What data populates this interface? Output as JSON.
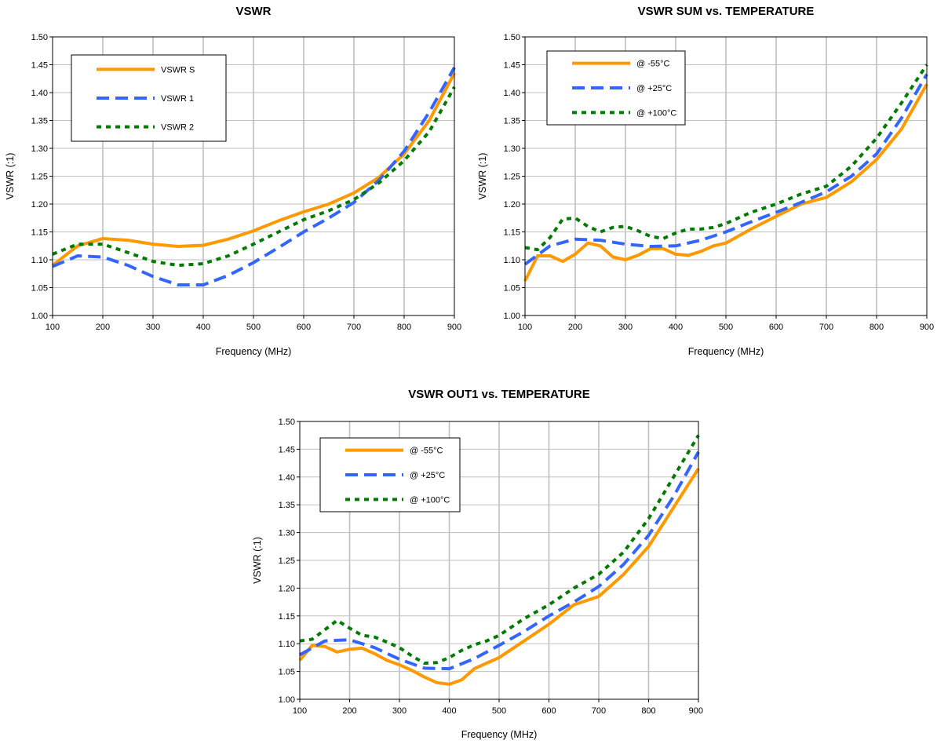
{
  "colors": {
    "orange": "#FF9900",
    "blue": "#3366FF",
    "green": "#007A00",
    "grid": "#BFBFBF"
  },
  "chart_data": [
    {
      "type": "line",
      "title": "VSWR",
      "xlabel": "Frequency (MHz)",
      "ylabel": "VSWR (:1)",
      "xlim": [
        100,
        900
      ],
      "ylim": [
        1.0,
        1.5
      ],
      "xticks": [
        "100",
        "200",
        "300",
        "400",
        "500",
        "600",
        "700",
        "800",
        "900"
      ],
      "yticks": [
        "1.00",
        "1.05",
        "1.10",
        "1.15",
        "1.20",
        "1.25",
        "1.30",
        "1.35",
        "1.40",
        "1.45",
        "1.50"
      ],
      "grid": "vertical",
      "legend_position": "top-left",
      "series": [
        {
          "name": "VSWR S",
          "color": "#FF9900",
          "style": "solid",
          "x": [
            100,
            150,
            200,
            250,
            300,
            350,
            400,
            450,
            500,
            550,
            600,
            650,
            700,
            750,
            800,
            850,
            900
          ],
          "y": [
            1.09,
            1.125,
            1.138,
            1.135,
            1.128,
            1.124,
            1.126,
            1.137,
            1.152,
            1.17,
            1.186,
            1.2,
            1.22,
            1.248,
            1.29,
            1.35,
            1.435
          ]
        },
        {
          "name": "VSWR 1",
          "color": "#3366FF",
          "style": "dashed",
          "x": [
            100,
            150,
            200,
            250,
            300,
            350,
            400,
            450,
            500,
            550,
            600,
            650,
            700,
            750,
            800,
            850,
            900
          ],
          "y": [
            1.088,
            1.107,
            1.105,
            1.09,
            1.07,
            1.055,
            1.055,
            1.072,
            1.095,
            1.122,
            1.15,
            1.175,
            1.203,
            1.243,
            1.295,
            1.365,
            1.445
          ]
        },
        {
          "name": "VSWR 2",
          "color": "#007A00",
          "style": "dotted",
          "x": [
            100,
            150,
            200,
            250,
            300,
            350,
            400,
            450,
            500,
            550,
            600,
            650,
            700,
            750,
            800,
            850,
            900
          ],
          "y": [
            1.11,
            1.128,
            1.128,
            1.113,
            1.097,
            1.09,
            1.093,
            1.107,
            1.128,
            1.15,
            1.172,
            1.188,
            1.208,
            1.238,
            1.278,
            1.33,
            1.41
          ]
        }
      ]
    },
    {
      "type": "line",
      "title": "VSWR SUM vs. TEMPERATURE",
      "xlabel": "Frequency (MHz)",
      "ylabel": "VSWR (:1)",
      "xlim": [
        100,
        900
      ],
      "ylim": [
        1.0,
        1.5
      ],
      "xticks": [
        "100",
        "200",
        "300",
        "400",
        "500",
        "600",
        "700",
        "800",
        "900"
      ],
      "yticks": [
        "1.00",
        "1.05",
        "1.10",
        "1.15",
        "1.20",
        "1.25",
        "1.30",
        "1.35",
        "1.40",
        "1.45",
        "1.50"
      ],
      "grid": "vertical",
      "legend_position": "top-left",
      "series": [
        {
          "name": "@ -55°C",
          "color": "#FF9900",
          "style": "solid",
          "x": [
            100,
            125,
            150,
            175,
            200,
            225,
            250,
            275,
            300,
            325,
            350,
            375,
            400,
            425,
            450,
            475,
            500,
            550,
            600,
            650,
            700,
            750,
            800,
            850,
            900
          ],
          "y": [
            1.062,
            1.107,
            1.107,
            1.097,
            1.11,
            1.13,
            1.125,
            1.105,
            1.1,
            1.108,
            1.12,
            1.12,
            1.11,
            1.108,
            1.115,
            1.125,
            1.13,
            1.155,
            1.178,
            1.2,
            1.212,
            1.24,
            1.28,
            1.335,
            1.415
          ]
        },
        {
          "name": "@ +25°C",
          "color": "#3366FF",
          "style": "dashed",
          "x": [
            100,
            150,
            200,
            250,
            300,
            350,
            400,
            450,
            500,
            550,
            600,
            650,
            700,
            750,
            800,
            850,
            900
          ],
          "y": [
            1.092,
            1.125,
            1.137,
            1.135,
            1.128,
            1.124,
            1.125,
            1.135,
            1.15,
            1.168,
            1.185,
            1.203,
            1.222,
            1.25,
            1.29,
            1.355,
            1.433
          ]
        },
        {
          "name": "@ +100°C",
          "color": "#007A00",
          "style": "dotted",
          "x": [
            100,
            125,
            150,
            175,
            200,
            225,
            250,
            275,
            300,
            325,
            350,
            375,
            400,
            425,
            450,
            475,
            500,
            550,
            600,
            650,
            700,
            750,
            800,
            850,
            900
          ],
          "y": [
            1.122,
            1.118,
            1.14,
            1.173,
            1.175,
            1.16,
            1.15,
            1.158,
            1.16,
            1.152,
            1.142,
            1.138,
            1.148,
            1.155,
            1.155,
            1.158,
            1.165,
            1.185,
            1.2,
            1.218,
            1.232,
            1.268,
            1.318,
            1.382,
            1.45
          ]
        }
      ]
    },
    {
      "type": "line",
      "title": "VSWR OUT1 vs. TEMPERATURE",
      "xlabel": "Frequency (MHz)",
      "ylabel": "VSWR (:1)",
      "xlim": [
        100,
        900
      ],
      "ylim": [
        1.0,
        1.5
      ],
      "xticks": [
        "100",
        "200",
        "300",
        "400",
        "500",
        "600",
        "700",
        "800",
        "900"
      ],
      "yticks": [
        "1.00",
        "1.05",
        "1.10",
        "1.15",
        "1.20",
        "1.25",
        "1.30",
        "1.35",
        "1.40",
        "1.45",
        "1.50"
      ],
      "grid": "vertical",
      "legend_position": "top-left",
      "series": [
        {
          "name": "@ -55°C",
          "color": "#FF9900",
          "style": "solid",
          "x": [
            100,
            125,
            150,
            175,
            200,
            225,
            250,
            275,
            300,
            325,
            350,
            375,
            400,
            425,
            450,
            475,
            500,
            550,
            600,
            650,
            700,
            750,
            800,
            850,
            900
          ],
          "y": [
            1.07,
            1.097,
            1.095,
            1.085,
            1.09,
            1.092,
            1.082,
            1.07,
            1.062,
            1.052,
            1.04,
            1.03,
            1.027,
            1.035,
            1.055,
            1.065,
            1.075,
            1.105,
            1.135,
            1.17,
            1.185,
            1.225,
            1.275,
            1.345,
            1.415
          ]
        },
        {
          "name": "@ +25°C",
          "color": "#3366FF",
          "style": "dashed",
          "x": [
            100,
            150,
            200,
            250,
            300,
            350,
            400,
            450,
            500,
            550,
            600,
            650,
            700,
            750,
            800,
            850,
            900
          ],
          "y": [
            1.08,
            1.105,
            1.107,
            1.093,
            1.072,
            1.056,
            1.055,
            1.073,
            1.097,
            1.122,
            1.15,
            1.175,
            1.203,
            1.243,
            1.295,
            1.365,
            1.445
          ]
        },
        {
          "name": "@ +100°C",
          "color": "#007A00",
          "style": "dotted",
          "x": [
            100,
            125,
            150,
            175,
            200,
            225,
            250,
            275,
            300,
            325,
            350,
            375,
            400,
            425,
            450,
            475,
            500,
            550,
            600,
            650,
            700,
            750,
            800,
            850,
            900
          ],
          "y": [
            1.105,
            1.108,
            1.125,
            1.142,
            1.128,
            1.115,
            1.112,
            1.103,
            1.093,
            1.078,
            1.065,
            1.066,
            1.075,
            1.088,
            1.098,
            1.105,
            1.115,
            1.145,
            1.17,
            1.2,
            1.225,
            1.265,
            1.325,
            1.4,
            1.475
          ]
        }
      ]
    }
  ]
}
